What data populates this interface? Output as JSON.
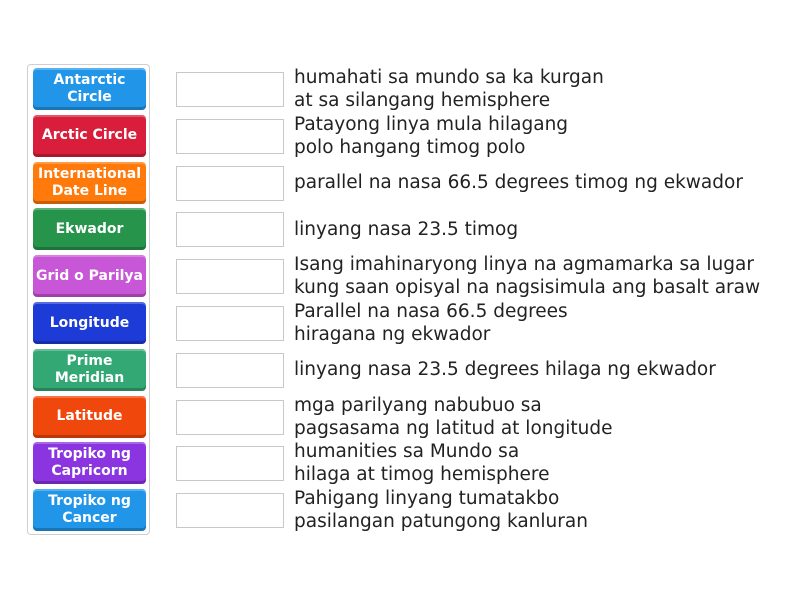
{
  "tiles": [
    {
      "label": "Antarctic Circle",
      "color": "#2196e8"
    },
    {
      "label": "Arctic Circle",
      "color": "#d81e3a"
    },
    {
      "label": "International Date Line",
      "color": "#ff7a0a"
    },
    {
      "label": "Ekwador",
      "color": "#26944a"
    },
    {
      "label": "Grid o Parilya",
      "color": "#c757d6"
    },
    {
      "label": "Longitude",
      "color": "#1d3bd6"
    },
    {
      "label": "Prime Meridian",
      "color": "#34a874"
    },
    {
      "label": "Latitude",
      "color": "#f0470c"
    },
    {
      "label": "Tropiko ng Capricorn",
      "color": "#8a35e0"
    },
    {
      "label": "Tropiko ng Cancer",
      "color": "#2196e8"
    }
  ],
  "descriptions": [
    "humahati sa mundo sa ka kurgan\nat sa silangang hemisphere",
    "Patayong linya mula hilagang\npolo hangang timog polo",
    "parallel na nasa 66.5 degrees timog ng ekwador",
    "linyang nasa 23.5 timog",
    "Isang imahinaryong linya na agmamarka sa lugar\nkung saan opisyal na nagsisimula ang basalt araw",
    "Parallel na nasa 66.5 degrees\nhiragana ng ekwador",
    "linyang nasa 23.5 degrees hilaga ng ekwador",
    "mga parilyang nabubuo sa\npagsasama ng latitud at longitude",
    "humanities sa Mundo sa\nhilaga at timog hemisphere",
    "Pahigang linyang tumatakbo\npasilangan patungong kanluran"
  ]
}
